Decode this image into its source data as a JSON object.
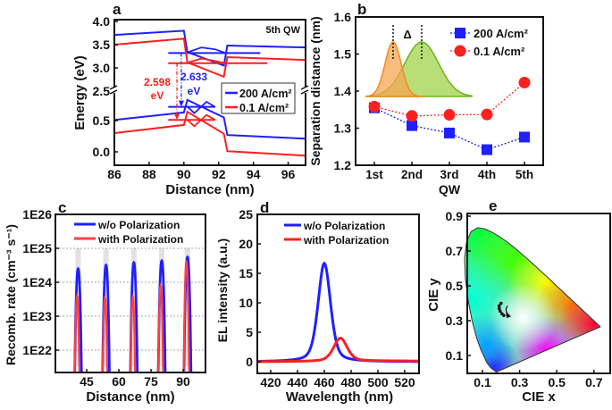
{
  "chart_data": [
    {
      "panel": "a",
      "type": "line",
      "xlabel": "Distance (nm)",
      "ylabel": "Energy (eV)",
      "xlim": [
        86,
        97
      ],
      "xticks": [
        86,
        88,
        90,
        92,
        94,
        96
      ],
      "yticks_upper": [
        4.0,
        3.5,
        3.0,
        2.5
      ],
      "yticks_lower": [
        0.5,
        0.0
      ],
      "broken_axis": true,
      "annotation": "5th QW",
      "series": [
        {
          "name": "200 A/cm²",
          "color": "#1f1fff",
          "conduction_band": [
            [
              86,
              3.71
            ],
            [
              90,
              3.8
            ],
            [
              90.2,
              3.34
            ],
            [
              92.3,
              3.05
            ],
            [
              92.5,
              3.48
            ],
            [
              97,
              3.44
            ]
          ],
          "valence_band": [
            [
              86,
              0.51
            ],
            [
              90,
              0.63
            ],
            [
              90.2,
              0.83
            ],
            [
              92.3,
              0.55
            ],
            [
              92.5,
              0.27
            ],
            [
              97,
              0.21
            ]
          ],
          "electron_level": [
            [
              89.1,
              3.32
            ],
            [
              94.4,
              3.32
            ]
          ],
          "hole_level": [
            [
              89.1,
              0.72
            ],
            [
              91.8,
              0.72
            ]
          ],
          "transition_energy": "2.633",
          "transition_unit": "eV"
        },
        {
          "name": "0.1 A/cm²",
          "color": "#ff1f1f",
          "conduction_band": [
            [
              86,
              3.5
            ],
            [
              90,
              3.63
            ],
            [
              90.2,
              3.12
            ],
            [
              92.3,
              2.81
            ],
            [
              92.5,
              3.23
            ],
            [
              97,
              3.17
            ]
          ],
          "valence_band": [
            [
              86,
              0.3
            ],
            [
              90,
              0.43
            ],
            [
              90.2,
              0.64
            ],
            [
              92.3,
              0.29
            ],
            [
              92.5,
              0.01
            ],
            [
              97,
              -0.06
            ]
          ],
          "electron_level": [
            [
              89.1,
              3.1
            ],
            [
              94.8,
              3.1
            ]
          ],
          "hole_level": [
            [
              89.1,
              0.51
            ],
            [
              91.8,
              0.51
            ]
          ],
          "transition_energy": "2.598",
          "transition_unit": "eV"
        }
      ]
    },
    {
      "panel": "b",
      "type": "line",
      "xlabel": "QW",
      "ylabel": "Separation distance (nm)",
      "categories": [
        "1st",
        "2nd",
        "3rd",
        "4th",
        "5th"
      ],
      "ylim": [
        1.2,
        1.6
      ],
      "yticks": [
        1.2,
        1.3,
        1.4,
        1.5,
        1.6
      ],
      "inset_label": "Δ",
      "legend": "top-right",
      "series": [
        {
          "name": "200 A/cm²",
          "color": "#1f1fff",
          "marker": "square",
          "values": [
            1.355,
            1.307,
            1.287,
            1.242,
            1.276
          ]
        },
        {
          "name": "0.1 A/cm²",
          "color": "#ff1f1f",
          "marker": "circle",
          "values": [
            1.358,
            1.333,
            1.336,
            1.337,
            1.423
          ]
        }
      ]
    },
    {
      "panel": "c",
      "type": "line",
      "xlabel": "Distance (nm)",
      "ylabel": "Recomb. rate (cm⁻³ s⁻¹)",
      "yscale": "log",
      "yticks": [
        "1E22",
        "1E23",
        "1E24",
        "1E25",
        "1E26"
      ],
      "xticks": [
        45,
        60,
        75,
        90
      ],
      "grid": true,
      "legend": "top",
      "series": [
        {
          "name": "w/o Polarization",
          "color": "#1f1fff",
          "peak_positions": [
            41,
            54,
            67,
            80,
            92
          ],
          "peak_values": [
            2.5e+24,
            3.2e+24,
            3.8e+24,
            4.3e+24,
            5.5e+24
          ]
        },
        {
          "name": "with Polarization",
          "color": "#ff4040",
          "peak_positions": [
            40.5,
            53.5,
            66.5,
            79.5,
            91.5
          ],
          "peak_values": [
            4e+23,
            3.5e+23,
            3.8e+23,
            8e+23,
            4e+24
          ]
        }
      ]
    },
    {
      "panel": "d",
      "type": "line",
      "xlabel": "Wavelength (nm)",
      "ylabel": "EL intensity (a.u.)",
      "xticks": [
        420,
        440,
        460,
        480,
        500,
        520
      ],
      "yticks": [
        0,
        5,
        10,
        15,
        20,
        25
      ],
      "ylim": [
        -2,
        25
      ],
      "legend": "top-right",
      "series": [
        {
          "name": "w/o Polarization",
          "color": "#1f1fff",
          "peak_wavelength": 460,
          "peak_intensity": 16.7
        },
        {
          "name": "with Polarization",
          "color": "#ff1f1f",
          "peak_wavelength": 472,
          "peak_intensity": 3.9
        }
      ]
    },
    {
      "panel": "e",
      "type": "scatter",
      "xlabel": "CIE x",
      "ylabel": "CIE y",
      "xticks": [
        0.1,
        0.3,
        0.5,
        0.7
      ],
      "yticks": [
        0.1,
        0.3,
        0.5,
        0.7,
        0.9
      ],
      "points": [
        [
          0.2,
          0.4
        ],
        [
          0.19,
          0.385
        ],
        [
          0.19,
          0.37
        ],
        [
          0.195,
          0.355
        ],
        [
          0.205,
          0.34
        ],
        [
          0.215,
          0.33
        ]
      ]
    }
  ]
}
